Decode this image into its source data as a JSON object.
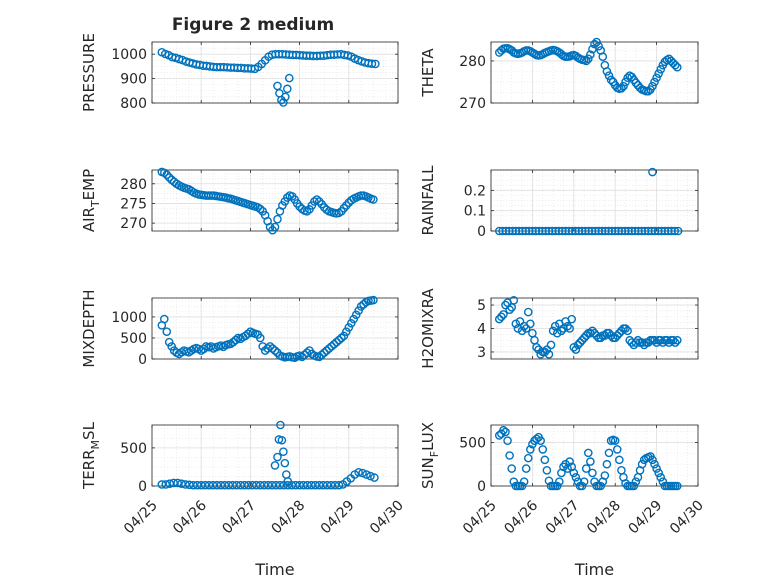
{
  "figure": {
    "title": "Figure 2 medium",
    "x_axis_label": "Time",
    "x_tick_labels": [
      "04/25",
      "04/26",
      "04/27",
      "04/28",
      "04/29",
      "04/30"
    ]
  },
  "colors": {
    "marker": "#0072BD",
    "axes": "#262626",
    "grid": "#dfdfdf",
    "background": "#ffffff"
  },
  "chart_data": [
    {
      "type": "scatter",
      "ylabel": "PRESSURE",
      "xlim": [
        0,
        5
      ],
      "ylim": [
        800,
        1050
      ],
      "yticks": [
        800,
        900,
        1000
      ],
      "grid": true,
      "x": [
        0.2,
        0.27,
        0.34,
        0.41,
        0.48,
        0.55,
        0.62,
        0.69,
        0.76,
        0.83,
        0.9,
        0.97,
        1.04,
        1.11,
        1.18,
        1.25,
        1.32,
        1.39,
        1.46,
        1.53,
        1.6,
        1.67,
        1.74,
        1.81,
        1.88,
        1.95,
        2.02,
        2.09,
        2.16,
        2.23,
        2.3,
        2.37,
        2.44,
        2.51,
        2.58,
        2.65,
        2.72,
        2.79,
        2.86,
        2.93,
        3.0,
        3.07,
        3.14,
        3.21,
        3.28,
        3.35,
        3.42,
        3.49,
        3.56,
        3.63,
        3.7,
        3.77,
        3.84,
        3.91,
        3.98,
        4.05,
        4.12,
        4.19,
        4.26,
        4.33,
        4.4,
        4.47,
        4.54,
        2.55,
        2.59,
        2.63,
        2.67,
        2.71,
        2.75,
        2.79
      ],
      "y": [
        1008,
        1001,
        996,
        988,
        985,
        980,
        976,
        970,
        966,
        962,
        958,
        956,
        953,
        952,
        950,
        948,
        947,
        947,
        947,
        946,
        945,
        945,
        944,
        944,
        942,
        942,
        941,
        940,
        948,
        960,
        975,
        990,
        998,
        1000,
        1000,
        1000,
        999,
        998,
        997,
        997,
        996,
        995,
        994,
        994,
        993,
        993,
        994,
        994,
        996,
        998,
        998,
        999,
        1000,
        997,
        995,
        990,
        982,
        976,
        971,
        966,
        963,
        961,
        960,
        870,
        840,
        812,
        802,
        825,
        858,
        902
      ],
      "series": [
        {
          "name": ""
        }
      ]
    },
    {
      "type": "scatter",
      "ylabel": "THETA",
      "xlim": [
        0,
        5
      ],
      "ylim": [
        270,
        284.5
      ],
      "yticks": [
        270,
        280
      ],
      "grid": true,
      "x": [
        0.2,
        0.25,
        0.3,
        0.35,
        0.4,
        0.45,
        0.5,
        0.55,
        0.6,
        0.65,
        0.7,
        0.75,
        0.8,
        0.85,
        0.9,
        0.95,
        1.0,
        1.05,
        1.1,
        1.15,
        1.2,
        1.25,
        1.3,
        1.35,
        1.4,
        1.45,
        1.5,
        1.55,
        1.6,
        1.65,
        1.7,
        1.75,
        1.8,
        1.85,
        1.9,
        1.95,
        2.0,
        2.05,
        2.1,
        2.15,
        2.2,
        2.25,
        2.3,
        2.35,
        2.4,
        2.45,
        2.5,
        2.55,
        2.6,
        2.65,
        2.7,
        2.75,
        2.8,
        2.85,
        2.9,
        2.95,
        3.0,
        3.05,
        3.1,
        3.15,
        3.2,
        3.25,
        3.3,
        3.35,
        3.4,
        3.45,
        3.5,
        3.55,
        3.6,
        3.65,
        3.7,
        3.75,
        3.8,
        3.85,
        3.9,
        3.95,
        4.0,
        4.05,
        4.1,
        4.15,
        4.2,
        4.25,
        4.3,
        4.35,
        4.4,
        4.45,
        4.5
      ],
      "y": [
        282.0,
        282.5,
        282.9,
        283.0,
        283.0,
        282.8,
        282.5,
        282.0,
        281.8,
        281.7,
        281.8,
        282.0,
        282.3,
        282.5,
        282.5,
        282.3,
        282.0,
        281.7,
        281.4,
        281.3,
        281.4,
        281.6,
        281.9,
        282.1,
        282.3,
        282.5,
        282.6,
        282.5,
        282.3,
        282.0,
        281.6,
        281.2,
        281.0,
        281.0,
        281.1,
        281.3,
        281.4,
        281.2,
        280.8,
        280.5,
        280.3,
        280.2,
        280.0,
        280.5,
        281.5,
        282.8,
        284.0,
        284.5,
        283.5,
        282.5,
        281.0,
        279.0,
        277.5,
        276.5,
        275.5,
        275.0,
        274.2,
        273.6,
        273.4,
        273.5,
        274.0,
        275.0,
        276.0,
        276.5,
        276.2,
        275.5,
        274.8,
        274.2,
        273.6,
        273.2,
        273.0,
        272.8,
        272.8,
        273.2,
        274.0,
        275.0,
        276.0,
        277.0,
        278.0,
        279.0,
        279.8,
        280.2,
        280.5,
        280.0,
        279.5,
        279.0,
        278.5
      ]
    },
    {
      "type": "scatter",
      "ylabel": "AIR_TEMP",
      "xlim": [
        0,
        5
      ],
      "ylim": [
        268,
        283.5
      ],
      "yticks": [
        270,
        275,
        280
      ],
      "grid": true,
      "x": [
        0.2,
        0.25,
        0.3,
        0.35,
        0.4,
        0.45,
        0.5,
        0.55,
        0.6,
        0.65,
        0.7,
        0.75,
        0.8,
        0.85,
        0.9,
        0.95,
        1.0,
        1.05,
        1.1,
        1.15,
        1.2,
        1.25,
        1.3,
        1.35,
        1.4,
        1.45,
        1.5,
        1.55,
        1.6,
        1.65,
        1.7,
        1.75,
        1.8,
        1.85,
        1.9,
        1.95,
        2.0,
        2.05,
        2.1,
        2.15,
        2.2,
        2.25,
        2.3,
        2.35,
        2.4,
        2.45,
        2.5,
        2.55,
        2.6,
        2.65,
        2.7,
        2.75,
        2.8,
        2.85,
        2.9,
        2.95,
        3.0,
        3.05,
        3.1,
        3.15,
        3.2,
        3.25,
        3.3,
        3.35,
        3.4,
        3.45,
        3.5,
        3.55,
        3.6,
        3.65,
        3.7,
        3.75,
        3.8,
        3.85,
        3.9,
        3.95,
        4.0,
        4.05,
        4.1,
        4.15,
        4.2,
        4.25,
        4.3,
        4.35,
        4.4,
        4.45,
        4.5
      ],
      "y": [
        283.0,
        282.8,
        282.3,
        281.6,
        281.0,
        280.5,
        280.0,
        279.6,
        279.3,
        279.0,
        278.8,
        278.6,
        278.2,
        277.8,
        277.5,
        277.3,
        277.2,
        277.1,
        277.0,
        277.0,
        277.0,
        277.0,
        276.9,
        276.8,
        276.7,
        276.6,
        276.5,
        276.3,
        276.2,
        276.0,
        275.8,
        275.6,
        275.4,
        275.2,
        275.0,
        274.8,
        274.6,
        274.4,
        274.2,
        274.0,
        273.6,
        273.0,
        272.0,
        270.5,
        269.0,
        268.2,
        269.0,
        271.0,
        273.0,
        274.5,
        275.5,
        276.5,
        277.0,
        276.8,
        276.0,
        275.0,
        274.2,
        273.6,
        273.2,
        273.0,
        273.5,
        274.5,
        275.5,
        276.0,
        275.5,
        274.8,
        274.0,
        273.4,
        273.0,
        272.8,
        272.6,
        272.5,
        272.6,
        273.0,
        273.8,
        274.5,
        275.2,
        275.8,
        276.2,
        276.5,
        276.8,
        277.0,
        277.0,
        276.8,
        276.5,
        276.2,
        276.0
      ]
    },
    {
      "type": "scatter",
      "ylabel": "RAINFALL",
      "xlim": [
        0,
        5
      ],
      "ylim": [
        0,
        0.3
      ],
      "yticks": [
        0,
        0.1,
        0.2
      ],
      "grid": true,
      "x": [
        0.2,
        0.28,
        0.36,
        0.44,
        0.52,
        0.6,
        0.68,
        0.76,
        0.84,
        0.92,
        1.0,
        1.08,
        1.16,
        1.24,
        1.32,
        1.4,
        1.48,
        1.56,
        1.64,
        1.72,
        1.8,
        1.88,
        1.96,
        2.04,
        2.12,
        2.2,
        2.28,
        2.36,
        2.44,
        2.52,
        2.6,
        2.68,
        2.76,
        2.84,
        2.92,
        3.0,
        3.08,
        3.16,
        3.24,
        3.32,
        3.4,
        3.48,
        3.56,
        3.64,
        3.72,
        3.8,
        3.88,
        3.96,
        4.04,
        4.12,
        4.2,
        4.28,
        4.36,
        4.44,
        4.52,
        3.9
      ],
      "y": [
        0,
        0,
        0,
        0,
        0,
        0,
        0,
        0,
        0,
        0,
        0,
        0,
        0,
        0,
        0,
        0,
        0,
        0,
        0,
        0,
        0,
        0,
        0,
        0,
        0,
        0,
        0,
        0,
        0,
        0,
        0,
        0,
        0,
        0,
        0,
        0,
        0,
        0,
        0,
        0,
        0,
        0,
        0,
        0,
        0,
        0,
        0,
        0,
        0,
        0,
        0,
        0,
        0,
        0,
        0,
        0.29
      ]
    },
    {
      "type": "scatter",
      "ylabel": "MIXDEPTH",
      "xlim": [
        0,
        5
      ],
      "ylim": [
        0,
        1450
      ],
      "yticks": [
        0,
        500,
        1000
      ],
      "grid": true,
      "x": [
        0.2,
        0.25,
        0.3,
        0.35,
        0.4,
        0.45,
        0.5,
        0.55,
        0.6,
        0.65,
        0.7,
        0.75,
        0.8,
        0.85,
        0.9,
        0.95,
        1.0,
        1.05,
        1.1,
        1.15,
        1.2,
        1.25,
        1.3,
        1.35,
        1.4,
        1.45,
        1.5,
        1.55,
        1.6,
        1.65,
        1.7,
        1.75,
        1.8,
        1.85,
        1.9,
        1.95,
        2.0,
        2.05,
        2.1,
        2.15,
        2.2,
        2.25,
        2.3,
        2.35,
        2.4,
        2.45,
        2.5,
        2.55,
        2.6,
        2.65,
        2.7,
        2.75,
        2.8,
        2.85,
        2.9,
        2.95,
        3.0,
        3.05,
        3.1,
        3.15,
        3.2,
        3.25,
        3.3,
        3.35,
        3.4,
        3.45,
        3.5,
        3.55,
        3.6,
        3.65,
        3.7,
        3.75,
        3.8,
        3.85,
        3.9,
        3.95,
        4.0,
        4.05,
        4.1,
        4.15,
        4.2,
        4.25,
        4.3,
        4.35,
        4.4,
        4.45,
        4.5
      ],
      "y": [
        800,
        950,
        650,
        400,
        300,
        200,
        150,
        120,
        160,
        200,
        180,
        160,
        200,
        240,
        260,
        240,
        200,
        240,
        300,
        280,
        300,
        250,
        280,
        300,
        320,
        290,
        330,
        350,
        360,
        400,
        450,
        500,
        480,
        520,
        550,
        600,
        650,
        620,
        600,
        580,
        500,
        300,
        200,
        250,
        300,
        250,
        200,
        150,
        80,
        60,
        40,
        50,
        60,
        40,
        30,
        60,
        80,
        50,
        100,
        150,
        200,
        120,
        80,
        60,
        50,
        100,
        150,
        200,
        250,
        300,
        350,
        400,
        450,
        500,
        550,
        650,
        750,
        850,
        950,
        1050,
        1150,
        1250,
        1300,
        1350,
        1380,
        1390,
        1400
      ]
    },
    {
      "type": "scatter",
      "ylabel": "H2OMIXRA",
      "xlim": [
        0,
        5
      ],
      "ylim": [
        2.7,
        5.3
      ],
      "yticks": [
        3,
        4,
        5
      ],
      "grid": true,
      "x": [
        0.2,
        0.25,
        0.3,
        0.35,
        0.4,
        0.45,
        0.5,
        0.55,
        0.6,
        0.65,
        0.7,
        0.75,
        0.8,
        0.85,
        0.9,
        0.95,
        1.0,
        1.05,
        1.1,
        1.15,
        1.2,
        1.25,
        1.3,
        1.35,
        1.4,
        1.45,
        1.5,
        1.55,
        1.6,
        1.65,
        1.7,
        1.75,
        1.8,
        1.85,
        1.9,
        1.95,
        2.0,
        2.05,
        2.1,
        2.15,
        2.2,
        2.25,
        2.3,
        2.35,
        2.4,
        2.45,
        2.5,
        2.55,
        2.6,
        2.65,
        2.7,
        2.75,
        2.8,
        2.85,
        2.9,
        2.95,
        3.0,
        3.05,
        3.1,
        3.15,
        3.2,
        3.25,
        3.3,
        3.35,
        3.4,
        3.45,
        3.5,
        3.55,
        3.6,
        3.65,
        3.7,
        3.75,
        3.8,
        3.85,
        3.9,
        3.95,
        4.0,
        4.05,
        4.1,
        4.15,
        4.2,
        4.25,
        4.3,
        4.35,
        4.4,
        4.45,
        4.5
      ],
      "y": [
        4.4,
        4.5,
        4.6,
        5.0,
        5.1,
        4.8,
        4.9,
        5.2,
        4.2,
        4.0,
        4.3,
        3.9,
        4.1,
        4.0,
        4.7,
        4.2,
        3.8,
        3.5,
        3.2,
        3.1,
        2.9,
        3.0,
        3.0,
        3.1,
        2.9,
        3.3,
        3.9,
        4.1,
        3.8,
        4.2,
        3.9,
        4.0,
        4.3,
        4.1,
        4.0,
        4.4,
        3.2,
        3.1,
        3.3,
        3.4,
        3.5,
        3.6,
        3.7,
        3.8,
        3.8,
        3.9,
        3.8,
        3.7,
        3.6,
        3.6,
        3.7,
        3.7,
        3.8,
        3.8,
        3.7,
        3.6,
        3.6,
        3.7,
        3.8,
        3.9,
        4.0,
        4.0,
        3.9,
        3.5,
        3.4,
        3.3,
        3.4,
        3.5,
        3.4,
        3.4,
        3.3,
        3.4,
        3.4,
        3.5,
        3.5,
        3.5,
        3.4,
        3.5,
        3.5,
        3.4,
        3.5,
        3.5,
        3.4,
        3.5,
        3.5,
        3.4,
        3.5
      ]
    },
    {
      "type": "scatter",
      "ylabel": "TERR_MSL",
      "xlim": [
        0,
        5
      ],
      "ylim": [
        0,
        800
      ],
      "yticks": [
        0,
        500
      ],
      "grid": true,
      "x": [
        0.2,
        0.28,
        0.36,
        0.44,
        0.52,
        0.6,
        0.68,
        0.76,
        0.84,
        0.92,
        1.0,
        1.08,
        1.16,
        1.24,
        1.32,
        1.4,
        1.48,
        1.56,
        1.64,
        1.72,
        1.8,
        1.88,
        1.96,
        2.04,
        2.12,
        2.2,
        2.28,
        2.36,
        2.44,
        2.52,
        2.6,
        2.68,
        2.76,
        2.84,
        2.92,
        3.0,
        3.08,
        3.16,
        3.24,
        3.32,
        3.4,
        3.48,
        3.56,
        3.64,
        3.72,
        3.8,
        3.88,
        3.96,
        4.04,
        4.12,
        4.2,
        4.28,
        4.36,
        4.44,
        4.52,
        2.5,
        2.55,
        2.58,
        2.61,
        2.64,
        2.67,
        2.7,
        2.73,
        2.76
      ],
      "y": [
        20,
        20,
        30,
        40,
        40,
        30,
        20,
        15,
        10,
        10,
        10,
        10,
        10,
        10,
        10,
        10,
        10,
        10,
        10,
        10,
        10,
        10,
        10,
        10,
        10,
        10,
        10,
        10,
        10,
        10,
        10,
        10,
        10,
        10,
        10,
        10,
        10,
        10,
        10,
        10,
        10,
        10,
        10,
        10,
        10,
        10,
        20,
        60,
        100,
        150,
        180,
        170,
        150,
        130,
        110,
        270,
        380,
        610,
        800,
        600,
        450,
        300,
        150,
        60
      ]
    },
    {
      "type": "scatter",
      "ylabel": "SUN_FLUX",
      "xlim": [
        0,
        5
      ],
      "ylim": [
        0,
        700
      ],
      "yticks": [
        0,
        500
      ],
      "grid": true,
      "x": [
        0.2,
        0.25,
        0.3,
        0.35,
        0.4,
        0.45,
        0.5,
        0.55,
        0.6,
        0.65,
        0.7,
        0.75,
        0.8,
        0.85,
        0.9,
        0.95,
        1.0,
        1.05,
        1.1,
        1.15,
        1.2,
        1.25,
        1.3,
        1.35,
        1.4,
        1.45,
        1.5,
        1.55,
        1.6,
        1.65,
        1.7,
        1.75,
        1.8,
        1.85,
        1.9,
        1.95,
        2.0,
        2.05,
        2.1,
        2.15,
        2.2,
        2.25,
        2.3,
        2.35,
        2.4,
        2.45,
        2.5,
        2.55,
        2.6,
        2.65,
        2.7,
        2.75,
        2.8,
        2.85,
        2.9,
        2.95,
        3.0,
        3.05,
        3.1,
        3.15,
        3.2,
        3.25,
        3.3,
        3.35,
        3.4,
        3.45,
        3.5,
        3.55,
        3.6,
        3.65,
        3.7,
        3.75,
        3.8,
        3.85,
        3.9,
        3.95,
        4.0,
        4.05,
        4.1,
        4.15,
        4.2,
        4.25,
        4.3,
        4.35,
        4.4,
        4.45,
        4.5
      ],
      "y": [
        580,
        600,
        640,
        620,
        520,
        350,
        200,
        50,
        0,
        0,
        0,
        0,
        50,
        200,
        320,
        420,
        480,
        520,
        540,
        560,
        520,
        420,
        300,
        180,
        60,
        0,
        0,
        0,
        0,
        50,
        150,
        220,
        250,
        200,
        280,
        220,
        150,
        100,
        50,
        0,
        0,
        50,
        200,
        380,
        280,
        150,
        50,
        0,
        0,
        0,
        50,
        120,
        250,
        380,
        520,
        530,
        520,
        420,
        300,
        180,
        100,
        30,
        0,
        0,
        0,
        0,
        50,
        100,
        180,
        250,
        300,
        320,
        330,
        340,
        300,
        250,
        200,
        150,
        100,
        50,
        0,
        0,
        0,
        0,
        0,
        0,
        0
      ]
    }
  ]
}
